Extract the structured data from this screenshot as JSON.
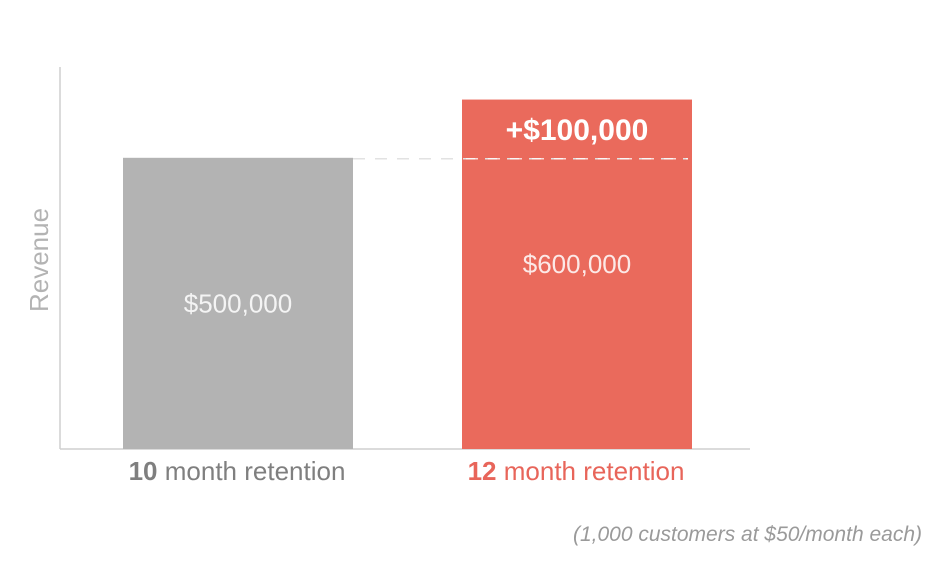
{
  "chart_data": {
    "type": "bar",
    "ylabel": "Revenue",
    "categories": [
      {
        "number": "10",
        "text": " month retention",
        "color": "#7f7f7f"
      },
      {
        "number": "12",
        "text": " month retention",
        "color": "#e8655a"
      }
    ],
    "values": [
      500000,
      600000
    ],
    "value_labels": [
      "$500,000",
      "$600,000"
    ],
    "bar_colors": [
      "#b3b3b3",
      "#ea6a5c"
    ],
    "delta": {
      "label": "+$100,000",
      "value": 100000
    },
    "ylim": [
      0,
      625000
    ],
    "grid": false,
    "footnote": "(1,000 customers at $50/month each)"
  }
}
